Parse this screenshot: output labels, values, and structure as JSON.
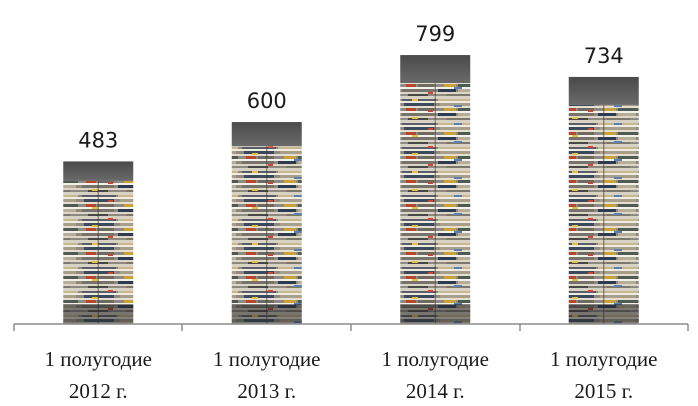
{
  "chart_data": {
    "type": "bar",
    "categories": [
      [
        "1 полугодие",
        "2012 г."
      ],
      [
        "1 полугодие",
        "2013 г."
      ],
      [
        "1 полугодие",
        "2014 г."
      ],
      [
        "1 полугодие",
        "2015 г."
      ]
    ],
    "values": [
      483,
      600,
      799,
      734
    ],
    "data_labels": [
      "483",
      "600",
      "799",
      "734"
    ],
    "ylim": [
      0,
      820
    ],
    "grid": false,
    "legend": "none",
    "bar_fill": "newspaper-stack-photo",
    "colors": {
      "axis": "#8c8c8c",
      "bar_top": "#555555",
      "bar_base": "#2a2a2a",
      "text": "#1a1a1a"
    }
  }
}
